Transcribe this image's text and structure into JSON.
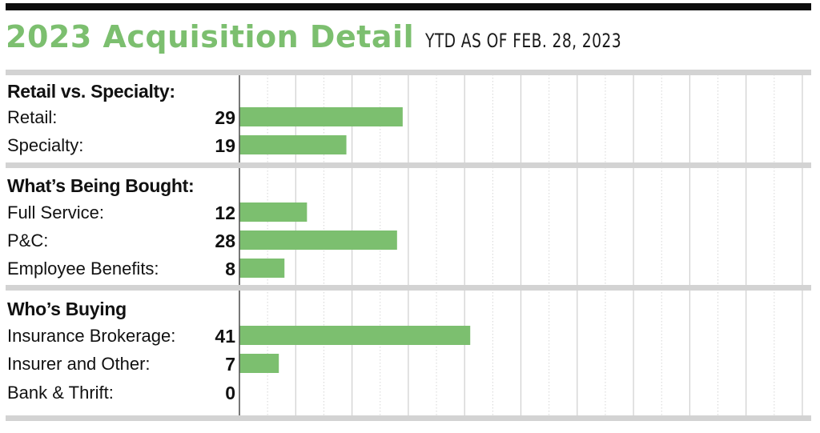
{
  "header": {
    "title": "2023 Acquisition Detail",
    "subtitle": "YTD AS OF FEB. 28, 2023"
  },
  "colors": {
    "title": "#7cbf6f",
    "bar": "#7cbf6f",
    "separator": "#d3d3d3",
    "topbar": "#0d0d0d"
  },
  "chart_data": {
    "type": "bar",
    "orientation": "horizontal",
    "title": "2023 Acquisition Detail",
    "subtitle": "YTD AS OF FEB. 28, 2023",
    "xlim": [
      0,
      101
    ],
    "grid": true,
    "groups": [
      {
        "heading": "Retail vs. Specialty:",
        "categories": [
          "Retail:",
          "Specialty:"
        ],
        "values": [
          29,
          19
        ]
      },
      {
        "heading": "What’s Being Bought:",
        "categories": [
          "Full Service:",
          "P&C:",
          "Employee Benefits:"
        ],
        "values": [
          12,
          28,
          8
        ]
      },
      {
        "heading": "Who’s Buying",
        "categories": [
          "Insurance Brokerage:",
          "Insurer and Other:",
          "Bank & Thrift:"
        ],
        "values": [
          41,
          7,
          0
        ]
      }
    ]
  }
}
